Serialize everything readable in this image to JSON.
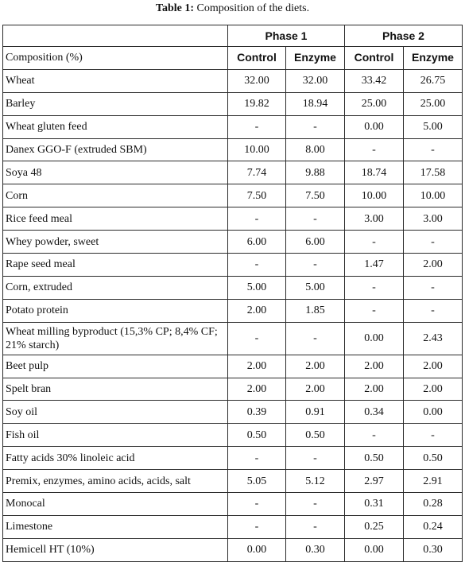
{
  "caption": {
    "label": "Table 1:",
    "text": "Composition of the diets."
  },
  "header": {
    "phase1": "Phase 1",
    "phase2": "Phase 2",
    "composition": "Composition (%)",
    "control": "Control",
    "enzyme": "Enzyme"
  },
  "rows": [
    {
      "name": "Wheat",
      "p1c": "32.00",
      "p1e": "32.00",
      "p2c": "33.42",
      "p2e": "26.75"
    },
    {
      "name": "Barley",
      "p1c": "19.82",
      "p1e": "18.94",
      "p2c": "25.00",
      "p2e": "25.00"
    },
    {
      "name": "Wheat gluten feed",
      "p1c": "-",
      "p1e": "-",
      "p2c": "0.00",
      "p2e": "5.00"
    },
    {
      "name": "Danex GGO-F (extruded SBM)",
      "p1c": "10.00",
      "p1e": "8.00",
      "p2c": "-",
      "p2e": "-"
    },
    {
      "name": "Soya 48",
      "p1c": "7.74",
      "p1e": "9.88",
      "p2c": "18.74",
      "p2e": "17.58"
    },
    {
      "name": "Corn",
      "p1c": "7.50",
      "p1e": "7.50",
      "p2c": "10.00",
      "p2e": "10.00"
    },
    {
      "name": "Rice feed meal",
      "p1c": "-",
      "p1e": "-",
      "p2c": "3.00",
      "p2e": "3.00"
    },
    {
      "name": "Whey powder, sweet",
      "p1c": "6.00",
      "p1e": "6.00",
      "p2c": "-",
      "p2e": "-"
    },
    {
      "name": "Rape seed meal",
      "p1c": "-",
      "p1e": "-",
      "p2c": "1.47",
      "p2e": "2.00"
    },
    {
      "name": "Corn, extruded",
      "p1c": "5.00",
      "p1e": "5.00",
      "p2c": "-",
      "p2e": "-"
    },
    {
      "name": "Potato protein",
      "p1c": "2.00",
      "p1e": "1.85",
      "p2c": "-",
      "p2e": "-"
    },
    {
      "name": "Wheat milling byproduct (15,3% CP; 8,4% CF; 21% starch)",
      "p1c": "-",
      "p1e": "-",
      "p2c": "0.00",
      "p2e": "2.43"
    },
    {
      "name": "Beet pulp",
      "p1c": "2.00",
      "p1e": "2.00",
      "p2c": "2.00",
      "p2e": "2.00"
    },
    {
      "name": "Spelt bran",
      "p1c": "2.00",
      "p1e": "2.00",
      "p2c": "2.00",
      "p2e": "2.00"
    },
    {
      "name": "Soy oil",
      "p1c": "0.39",
      "p1e": "0.91",
      "p2c": "0.34",
      "p2e": "0.00"
    },
    {
      "name": "Fish oil",
      "p1c": "0.50",
      "p1e": "0.50",
      "p2c": "-",
      "p2e": "-"
    },
    {
      "name": "Fatty acids 30% linoleic acid",
      "p1c": "-",
      "p1e": "-",
      "p2c": "0.50",
      "p2e": "0.50"
    },
    {
      "name": "Premix, enzymes, amino acids, acids, salt",
      "p1c": "5.05",
      "p1e": "5.12",
      "p2c": "2.97",
      "p2e": "2.91"
    },
    {
      "name": "Monocal",
      "p1c": "-",
      "p1e": "-",
      "p2c": "0.31",
      "p2e": "0.28"
    },
    {
      "name": "Limestone",
      "p1c": "-",
      "p1e": "-",
      "p2c": "0.25",
      "p2e": "0.24"
    },
    {
      "name": "Hemicell HT (10%)",
      "p1c": "0.00",
      "p1e": "0.30",
      "p2c": "0.00",
      "p2e": "0.30"
    }
  ]
}
